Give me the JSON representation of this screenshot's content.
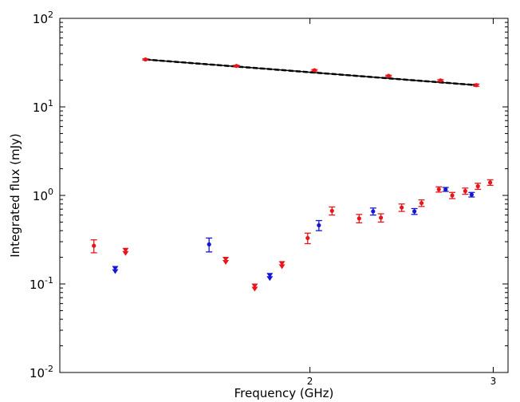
{
  "chart_data": {
    "type": "scatter",
    "xlabel": "Frequency (GHz)",
    "ylabel": "Integrated flux (mJy)",
    "x_scale": "log",
    "y_scale": "log",
    "xlim": [
      1.15,
      3.1
    ],
    "ylim": [
      0.01,
      100
    ],
    "x_ticks": [
      {
        "value": 2,
        "label": "2"
      },
      {
        "value": 3,
        "label": "3"
      }
    ],
    "y_ticks": [
      {
        "value": 0.01,
        "base": "10",
        "exp": "-2"
      },
      {
        "value": 0.1,
        "base": "10",
        "exp": "-1"
      },
      {
        "value": 1,
        "base": "10",
        "exp": "0"
      },
      {
        "value": 10,
        "base": "10",
        "exp": "1"
      },
      {
        "value": 100,
        "base": "10",
        "exp": "2"
      }
    ],
    "grid": false,
    "series": [
      {
        "color": "#e8161b",
        "points": [
          {
            "x": 1.39,
            "y": 34.3,
            "err": 0.6
          },
          {
            "x": 1.7,
            "y": 29.0,
            "err": 0.5
          },
          {
            "x": 2.02,
            "y": 25.9,
            "err": 0.5
          },
          {
            "x": 2.38,
            "y": 22.4,
            "err": 0.4
          },
          {
            "x": 2.67,
            "y": 19.9,
            "err": 0.4
          },
          {
            "x": 2.89,
            "y": 17.6,
            "err": 0.5
          }
        ]
      },
      {
        "color": "#e8161b",
        "points": [
          {
            "x": 1.24,
            "y": 0.27,
            "err": 0.045
          },
          {
            "x": 1.99,
            "y": 0.33,
            "err": 0.045
          },
          {
            "x": 2.1,
            "y": 0.67,
            "err": 0.07
          },
          {
            "x": 2.23,
            "y": 0.55,
            "err": 0.06
          },
          {
            "x": 2.34,
            "y": 0.56,
            "err": 0.06
          },
          {
            "x": 2.45,
            "y": 0.73,
            "err": 0.07
          },
          {
            "x": 2.56,
            "y": 0.82,
            "err": 0.07
          },
          {
            "x": 2.66,
            "y": 1.17,
            "err": 0.08
          },
          {
            "x": 2.74,
            "y": 1.0,
            "err": 0.08
          },
          {
            "x": 2.82,
            "y": 1.12,
            "err": 0.09
          },
          {
            "x": 2.9,
            "y": 1.27,
            "err": 0.1
          },
          {
            "x": 2.98,
            "y": 1.4,
            "err": 0.1
          }
        ],
        "upper_limits": [
          {
            "x": 1.33,
            "y": 0.24
          },
          {
            "x": 1.66,
            "y": 0.19
          },
          {
            "x": 1.77,
            "y": 0.095
          },
          {
            "x": 1.88,
            "y": 0.17
          }
        ]
      },
      {
        "color": "#1515d8",
        "points": [
          {
            "x": 1.6,
            "y": 0.28,
            "err": 0.05
          },
          {
            "x": 2.04,
            "y": 0.46,
            "err": 0.06
          },
          {
            "x": 2.3,
            "y": 0.66,
            "err": 0.06
          },
          {
            "x": 2.52,
            "y": 0.66,
            "err": 0.05
          },
          {
            "x": 2.7,
            "y": 1.17,
            "err": 0.06
          },
          {
            "x": 2.86,
            "y": 1.02,
            "err": 0.06
          }
        ],
        "upper_limits": [
          {
            "x": 1.3,
            "y": 0.15
          },
          {
            "x": 1.83,
            "y": 0.125
          }
        ]
      }
    ],
    "fit_line": {
      "color": "#000000",
      "style": "dashed",
      "points": [
        {
          "x": 1.39,
          "y": 34.3
        },
        {
          "x": 2.89,
          "y": 17.6
        }
      ]
    }
  }
}
